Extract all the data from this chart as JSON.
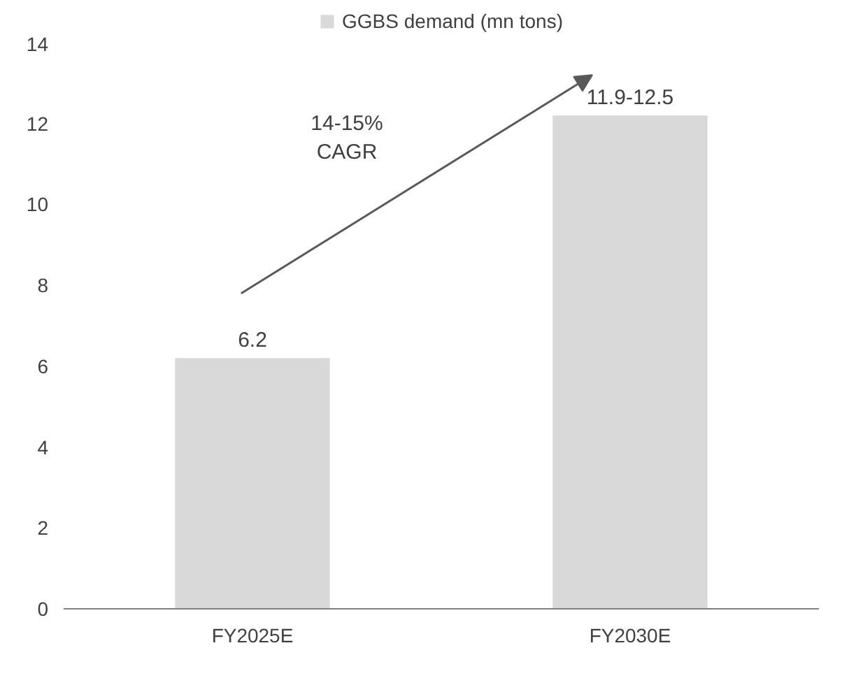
{
  "chart_data": {
    "type": "bar",
    "categories": [
      "FY2025E",
      "FY2030E"
    ],
    "series": [
      {
        "name": "GGBS demand (mn tons)",
        "color": "#d9d9d9",
        "values": [
          6.2,
          12.2
        ],
        "value_labels": [
          "6.2",
          "11.9-12.5"
        ]
      }
    ],
    "ylim": [
      0,
      14
    ],
    "yticks": [
      0,
      2,
      4,
      6,
      8,
      10,
      12,
      14
    ],
    "grid": false,
    "legend": "top",
    "annotations": [
      "14-15%\nCAGR"
    ]
  }
}
